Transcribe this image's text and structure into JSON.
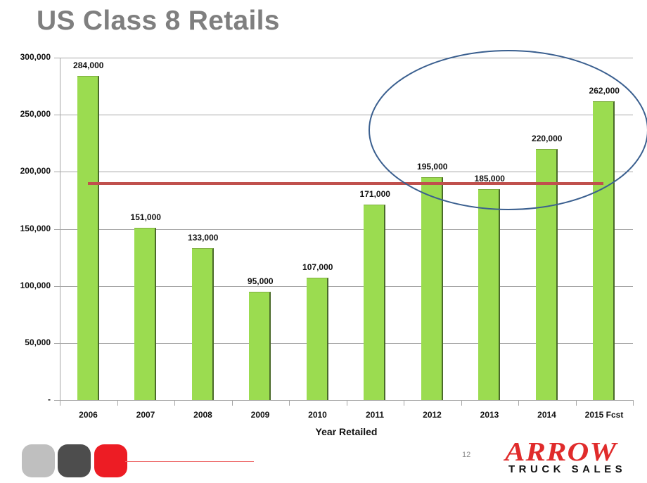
{
  "title": "US Class 8 Retails",
  "page_number": "12",
  "logo": {
    "line1": "ARROW",
    "line2": "TRUCK SALES"
  },
  "decor": {
    "squares": [
      "#bfbfbf",
      "#4d4d4d",
      "#ed1c24"
    ],
    "rule_color": "#ee6a6a"
  },
  "chart_data": {
    "type": "bar",
    "title": "US Class 8 Retails",
    "xlabel": "Year Retailed",
    "ylabel": "",
    "categories": [
      "2006",
      "2007",
      "2008",
      "2009",
      "2010",
      "2011",
      "2012",
      "2013",
      "2014",
      "2015 Fcst"
    ],
    "values": [
      284000,
      151000,
      133000,
      95000,
      107000,
      171000,
      195000,
      185000,
      220000,
      262000
    ],
    "value_labels": [
      "284,000",
      "151,000",
      "133,000",
      "95,000",
      "107,000",
      "171,000",
      "195,000",
      "185,000",
      "220,000",
      "262,000"
    ],
    "ylim": [
      0,
      300000
    ],
    "yticks": [
      {
        "value": 300000,
        "label": "300,000"
      },
      {
        "value": 250000,
        "label": "250,000"
      },
      {
        "value": 200000,
        "label": "200,000"
      },
      {
        "value": 150000,
        "label": "150,000"
      },
      {
        "value": 100000,
        "label": "100,000"
      },
      {
        "value": 50000,
        "label": "50,000"
      },
      {
        "value": 0,
        "label": "-"
      }
    ],
    "grid": true,
    "bar_color": "#9bdc50",
    "annotations": [
      {
        "type": "horizontal_line",
        "value": 190000,
        "color": "#c0504d",
        "from_category": "2006",
        "to_category": "2015 Fcst"
      },
      {
        "type": "ellipse",
        "color": "#3a5f8f",
        "encloses": [
          "2012",
          "2013",
          "2014",
          "2015 Fcst"
        ]
      }
    ]
  }
}
